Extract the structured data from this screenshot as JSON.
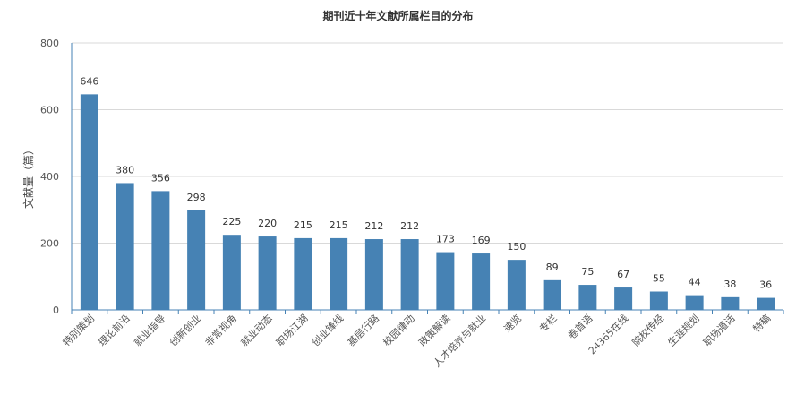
{
  "chart_data": {
    "type": "bar",
    "title": "期刊近十年文献所属栏目的分布",
    "ylabel": "文献量（篇）",
    "xlabel": "",
    "ylim": [
      0,
      800
    ],
    "yticks": [
      0,
      200,
      400,
      600,
      800
    ],
    "grid": true,
    "color": "#4682b4",
    "categories": [
      "特别策划",
      "理论前沿",
      "就业指导",
      "创新创业",
      "非常视角",
      "就业动态",
      "职场江湖",
      "创业锋线",
      "基层行路",
      "校园律动",
      "政策解读",
      "人才培养与就业",
      "速览",
      "专栏",
      "卷首语",
      "24365在线",
      "院校传经",
      "生涯规划",
      "职场遁话",
      "特稿"
    ],
    "values": [
      646,
      380,
      356,
      298,
      225,
      220,
      215,
      215,
      212,
      212,
      173,
      169,
      150,
      89,
      75,
      67,
      55,
      44,
      38,
      36
    ]
  }
}
